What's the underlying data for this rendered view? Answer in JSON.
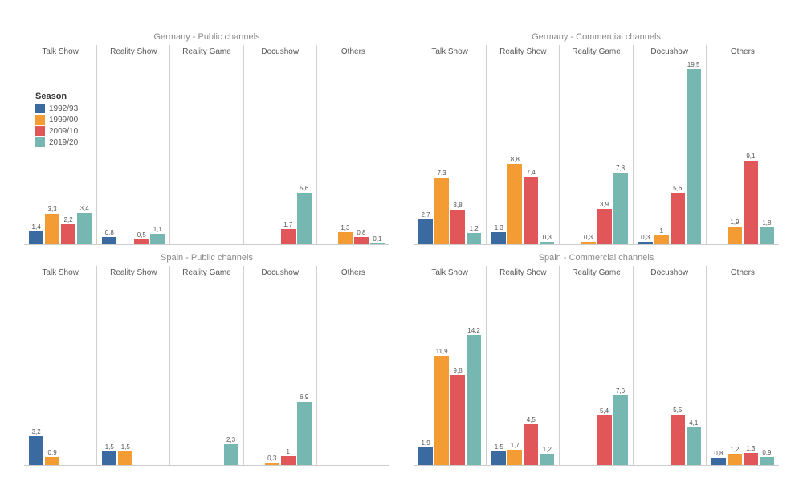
{
  "legend": {
    "title": "Season",
    "items": [
      {
        "label": "1992/93",
        "color": "#3b6aa0"
      },
      {
        "label": "1999/00",
        "color": "#f39c33"
      },
      {
        "label": "2009/10",
        "color": "#e15759"
      },
      {
        "label": "2019/20",
        "color": "#76b7b2"
      }
    ]
  },
  "chart": {
    "ymax": 20,
    "value_fontsize": 8,
    "categories": [
      "Talk Show",
      "Reality Show",
      "Reality Game",
      "Docushow",
      "Others"
    ],
    "seasons": [
      "1992/93",
      "1999/00",
      "2009/10",
      "2019/20"
    ],
    "colors": [
      "#3b6aa0",
      "#f39c33",
      "#e15759",
      "#76b7b2"
    ],
    "panels": [
      {
        "title": "Germany - Public channels",
        "data": {
          "Talk Show": [
            1.4,
            3.3,
            2.2,
            3.4
          ],
          "Reality Show": [
            0.8,
            null,
            0.5,
            1.1
          ],
          "Reality Game": [
            null,
            null,
            null,
            null
          ],
          "Docushow": [
            null,
            null,
            1.7,
            5.6
          ],
          "Others": [
            null,
            1.3,
            0.8,
            0.1
          ]
        }
      },
      {
        "title": "Germany - Commercial channels",
        "data": {
          "Talk Show": [
            2.7,
            7.3,
            3.8,
            1.2
          ],
          "Reality Show": [
            1.3,
            8.8,
            7.4,
            0.3
          ],
          "Reality Game": [
            null,
            0.3,
            3.9,
            7.8
          ],
          "Docushow": [
            0.3,
            1.0,
            5.6,
            19.5
          ],
          "Others": [
            null,
            1.9,
            9.1,
            1.8
          ]
        }
      },
      {
        "title": "Spain - Public channels",
        "data": {
          "Talk Show": [
            3.2,
            0.9,
            null,
            null
          ],
          "Reality Show": [
            1.5,
            1.5,
            null,
            null
          ],
          "Reality Game": [
            null,
            null,
            null,
            2.3
          ],
          "Docushow": [
            null,
            0.3,
            1.0,
            6.9
          ],
          "Others": [
            null,
            null,
            null,
            null
          ]
        }
      },
      {
        "title": "Spain - Commercial channels",
        "data": {
          "Talk Show": [
            1.9,
            11.9,
            9.8,
            14.2
          ],
          "Reality Show": [
            1.5,
            1.7,
            4.5,
            1.2
          ],
          "Reality Game": [
            null,
            null,
            5.4,
            7.6
          ],
          "Docushow": [
            null,
            null,
            5.5,
            4.1
          ],
          "Others": [
            0.8,
            1.2,
            1.3,
            0.9
          ]
        }
      }
    ]
  }
}
